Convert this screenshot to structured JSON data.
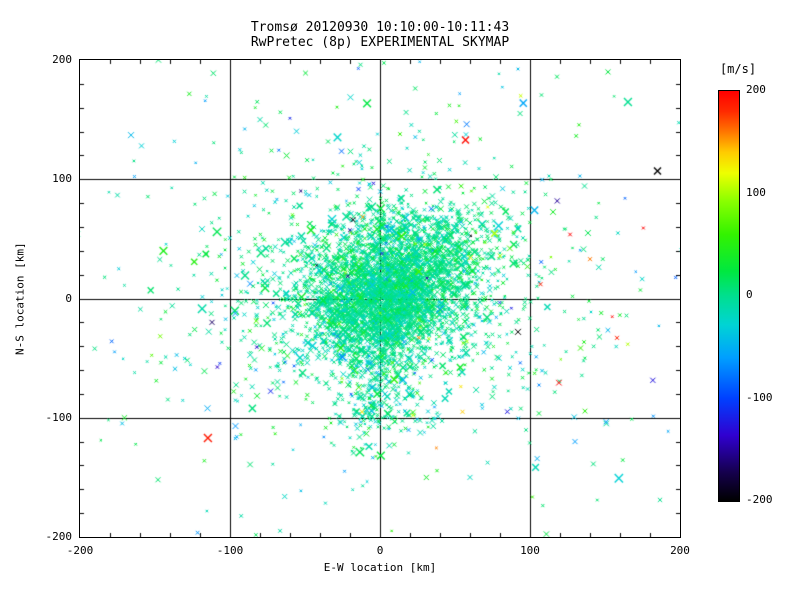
{
  "chart_data": {
    "type": "scatter",
    "title_line1": "Tromsø 20120930 10:10:00-10:11:43",
    "title_line2": "RwPretec (8p) EXPERIMENTAL SKYMAP",
    "xlabel": "E-W location [km]",
    "ylabel": "N-S location [km]",
    "xlim": [
      -200,
      200
    ],
    "ylim": [
      -200,
      200
    ],
    "xticks": [
      -200,
      -100,
      0,
      100,
      200
    ],
    "yticks": [
      -200,
      -100,
      0,
      100,
      200
    ],
    "grid_x": [
      -100,
      0,
      100
    ],
    "grid_y": [
      -100,
      0,
      100
    ],
    "minor_tick_step": 20,
    "marker": "x",
    "grid": true,
    "seed": 20120930,
    "colorbar": {
      "label": "[m/s]",
      "vmax": 200,
      "vmin": -200,
      "ticks": [
        200,
        100,
        0,
        -100,
        -200
      ],
      "stops": [
        [
          0.0,
          "#ff0000"
        ],
        [
          0.05,
          "#ff2a00"
        ],
        [
          0.1,
          "#ff7700"
        ],
        [
          0.15,
          "#ffcc00"
        ],
        [
          0.2,
          "#eeff00"
        ],
        [
          0.27,
          "#88ff00"
        ],
        [
          0.35,
          "#33f300"
        ],
        [
          0.44,
          "#00e840"
        ],
        [
          0.5,
          "#00df8f"
        ],
        [
          0.57,
          "#00d4d4"
        ],
        [
          0.65,
          "#009fff"
        ],
        [
          0.75,
          "#0040ff"
        ],
        [
          0.84,
          "#3000d0"
        ],
        [
          0.93,
          "#15004d"
        ],
        [
          1.0,
          "#000000"
        ]
      ]
    },
    "clusters": [
      {
        "count": 2400,
        "cx": 2,
        "cy": -2,
        "sx": 26,
        "sy": 24,
        "v_mean": 0,
        "v_sigma": 14
      },
      {
        "count": 650,
        "cx": 30,
        "cy": 28,
        "sx": 26,
        "sy": 20,
        "v_mean": 5,
        "v_sigma": 16
      },
      {
        "count": 350,
        "cx": 25,
        "cy": 58,
        "sx": 30,
        "sy": 14,
        "v_mean": 0,
        "v_sigma": 18
      },
      {
        "count": 800,
        "cx": 0,
        "cy": 5,
        "sx": 55,
        "sy": 48,
        "v_mean": 0,
        "v_sigma": 22
      },
      {
        "count": 260,
        "cx": -3,
        "cy": -80,
        "sx": 15,
        "sy": 26,
        "v_mean": -5,
        "v_sigma": 22
      },
      {
        "count": 330,
        "cx": 0,
        "cy": 0,
        "sx": 100,
        "sy": 85,
        "v_mean": 0,
        "v_sigma": 35
      },
      {
        "count": 170,
        "cx": 0,
        "cy": 10,
        "sx": 150,
        "sy": 115,
        "v_mean": 0,
        "v_sigma": 45
      },
      {
        "count": 70,
        "cx": 5,
        "cy": 0,
        "sx": 70,
        "sy": 60,
        "v_mean": 0,
        "v_sigma": 95
      },
      {
        "count": 22,
        "cx": 10,
        "cy": 0,
        "sx": 90,
        "sy": 70,
        "v_mean": 0,
        "v_sigma": 150
      }
    ],
    "outliers": [
      {
        "x": 57,
        "y": 133,
        "v": 195,
        "s": 7
      },
      {
        "x": 185,
        "y": 107,
        "v": -200,
        "s": 7
      },
      {
        "x": 92,
        "y": -28,
        "v": -200,
        "s": 6
      },
      {
        "x": -18,
        "y": 66,
        "v": -195,
        "s": 5
      },
      {
        "x": 107,
        "y": 12,
        "v": 185,
        "s": 4
      },
      {
        "x": 140,
        "y": 33,
        "v": 160,
        "s": 4
      },
      {
        "x": 158,
        "y": -33,
        "v": 185,
        "s": 4
      },
      {
        "x": -112,
        "y": -20,
        "v": -165,
        "s": 5
      },
      {
        "x": -166,
        "y": 137,
        "v": -45,
        "s": 6
      },
      {
        "x": -159,
        "y": 128,
        "v": -30,
        "s": 5
      },
      {
        "x": -148,
        "y": -152,
        "v": 10,
        "s": 5
      },
      {
        "x": 152,
        "y": 190,
        "v": 25,
        "s": 5
      },
      {
        "x": -13,
        "y": 196,
        "v": 5,
        "s": 4
      },
      {
        "x": 118,
        "y": 186,
        "v": 15,
        "s": 4
      },
      {
        "x": -12,
        "y": -95,
        "v": 130,
        "s": 5
      },
      {
        "x": 22,
        "y": -98,
        "v": 120,
        "s": 4
      },
      {
        "x": 55,
        "y": -95,
        "v": 140,
        "s": 4
      },
      {
        "x": 130,
        "y": -120,
        "v": -60,
        "s": 5
      },
      {
        "x": 60,
        "y": -150,
        "v": -20,
        "s": 5
      },
      {
        "x": -80,
        "y": 150,
        "v": -10,
        "s": 5
      }
    ]
  }
}
